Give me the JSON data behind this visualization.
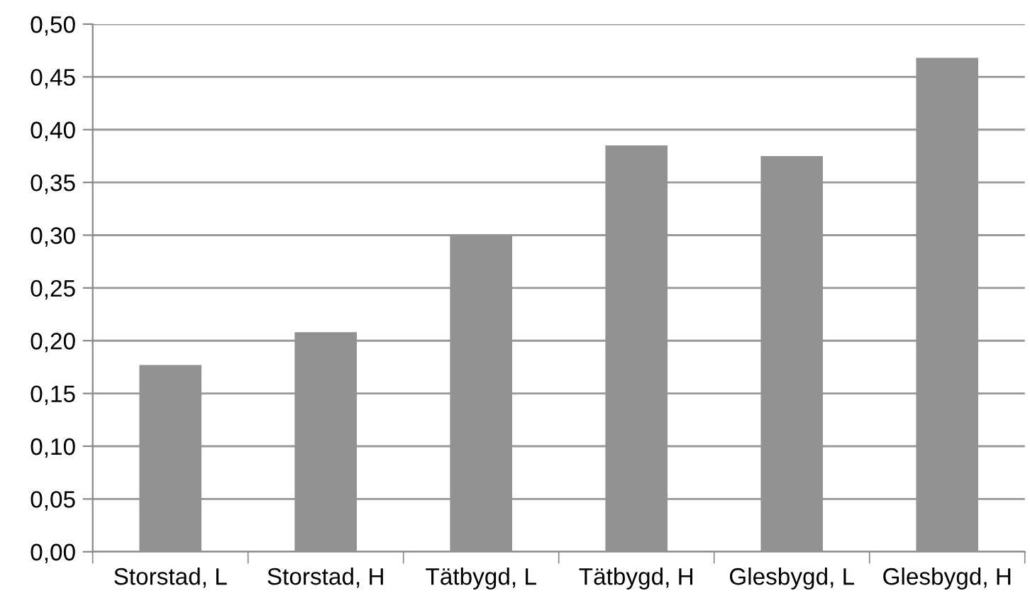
{
  "chart_data": {
    "type": "bar",
    "categories": [
      "Storstad, L",
      "Storstad, H",
      "Tätbygd, L",
      "Tätbygd, H",
      "Glesbygd, L",
      "Glesbygd, H"
    ],
    "values": [
      0.177,
      0.208,
      0.3,
      0.385,
      0.375,
      0.468
    ],
    "color": "#929292",
    "ylim": [
      0,
      0.5
    ],
    "yticks": [
      {
        "value": 0,
        "label": "0,00"
      },
      {
        "value": 0.05,
        "label": "0,05"
      },
      {
        "value": 0.1,
        "label": "0,10"
      },
      {
        "value": 0.15,
        "label": "0,15"
      },
      {
        "value": 0.2,
        "label": "0,20"
      },
      {
        "value": 0.25,
        "label": "0,25"
      },
      {
        "value": 0.3,
        "label": "0,30"
      },
      {
        "value": 0.35,
        "label": "0,35"
      },
      {
        "value": 0.4,
        "label": "0,40"
      },
      {
        "value": 0.45,
        "label": "0,45"
      },
      {
        "value": 0.5,
        "label": "0,50"
      }
    ],
    "grid": "y"
  }
}
